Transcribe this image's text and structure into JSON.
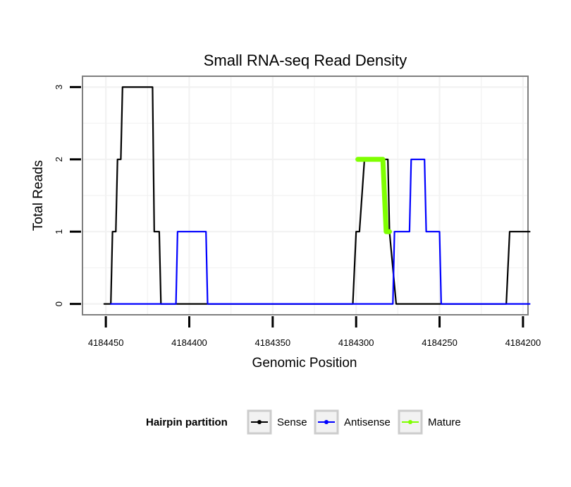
{
  "chart_data": {
    "type": "line",
    "title": "Small RNA-seq Read Density",
    "xlabel": "Genomic Position",
    "ylabel": "Total Reads",
    "xlim": [
      4184464,
      4184197
    ],
    "ylim": [
      -0.15,
      3.15
    ],
    "x_reversed": true,
    "x_ticks": [
      4184450,
      4184400,
      4184350,
      4184300,
      4184250,
      4184200
    ],
    "x_tick_labels": [
      "4184450",
      "4184400",
      "4184350",
      "4184300",
      "4184250",
      "4184200"
    ],
    "y_ticks": [
      0,
      1,
      2,
      3
    ],
    "y_tick_labels": [
      "0",
      "1",
      "2",
      "3"
    ],
    "grid": true,
    "legend": {
      "title": "Hairpin partition",
      "position": "bottom",
      "entries": [
        "Sense",
        "Antisense",
        "Mature"
      ]
    },
    "series": [
      {
        "name": "Sense",
        "color": "#000000",
        "x": [
          4184451,
          4184447,
          4184446,
          4184444,
          4184443,
          4184441,
          4184440,
          4184438,
          4184422,
          4184421,
          4184418,
          4184417,
          4184414,
          4184402,
          4184302,
          4184300,
          4184298,
          4184295,
          4184281,
          4184280,
          4184276,
          4184210,
          4184208,
          4184196
        ],
        "y": [
          0,
          0,
          1,
          1,
          2,
          2,
          3,
          3,
          3,
          1,
          1,
          0,
          0,
          0,
          0,
          1,
          1,
          2,
          2,
          1,
          0,
          0,
          1,
          1
        ]
      },
      {
        "name": "Antisense",
        "color": "#0000ff",
        "x": [
          4184447,
          4184408,
          4184407,
          4184390,
          4184389,
          4184278,
          4184277,
          4184268,
          4184267,
          4184259,
          4184258,
          4184250,
          4184249,
          4184238,
          4184237,
          4184196
        ],
        "y": [
          0,
          0,
          1,
          1,
          0,
          0,
          1,
          1,
          2,
          2,
          1,
          1,
          0,
          0,
          0,
          0
        ]
      },
      {
        "name": "Mature",
        "color": "#7fff00",
        "x": [
          4184299,
          4184284,
          4184282,
          4184280
        ],
        "y": [
          2,
          2,
          1,
          1
        ]
      }
    ]
  }
}
